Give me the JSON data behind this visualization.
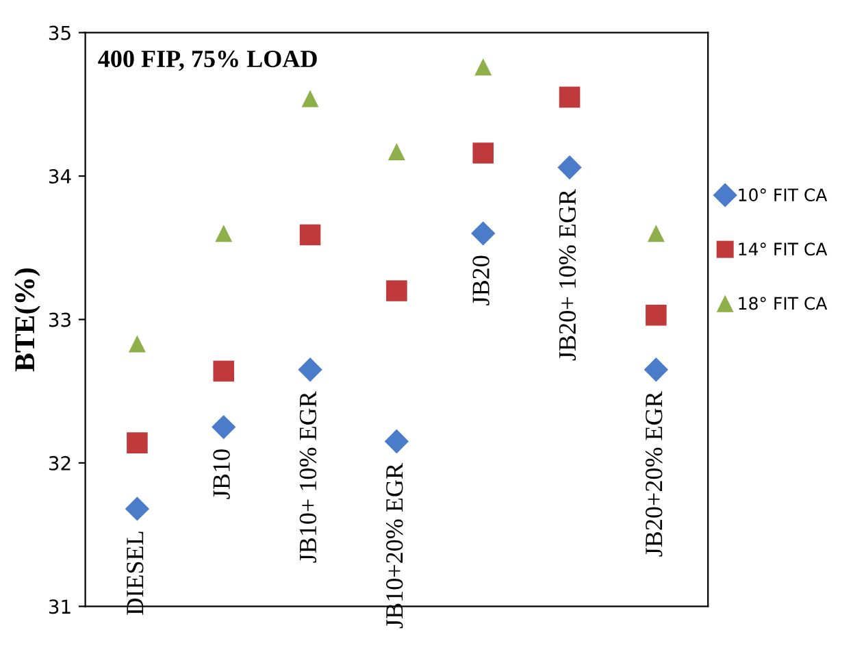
{
  "chart_data": {
    "type": "scatter",
    "ylabel": "BTE(%)",
    "annotations": [
      "400 FIP, 75% LOAD"
    ],
    "categories": [
      "DIESEL",
      "JB10",
      "JB10+ 10% EGR",
      "JB10+20% EGR",
      "JB20",
      "JB20+ 10% EGR",
      "JB20+20% EGR"
    ],
    "series": [
      {
        "name": "10° FIT CA",
        "color": "#4a7cc9",
        "marker": "diamond",
        "values": [
          31.68,
          32.25,
          32.65,
          32.15,
          33.6,
          34.06,
          32.65
        ]
      },
      {
        "name": "14° FIT CA",
        "color": "#c0393b",
        "marker": "square",
        "values": [
          32.14,
          32.64,
          33.59,
          33.2,
          34.16,
          34.55,
          33.03
        ]
      },
      {
        "name": "18° FIT CA",
        "color": "#8db04a",
        "marker": "triangle",
        "values": [
          32.83,
          33.6,
          34.54,
          34.17,
          34.76,
          null,
          33.6
        ]
      }
    ],
    "ylim": [
      31,
      35
    ],
    "yticks": [
      31,
      32,
      33,
      34,
      35
    ],
    "grid": false,
    "legend": "right"
  }
}
